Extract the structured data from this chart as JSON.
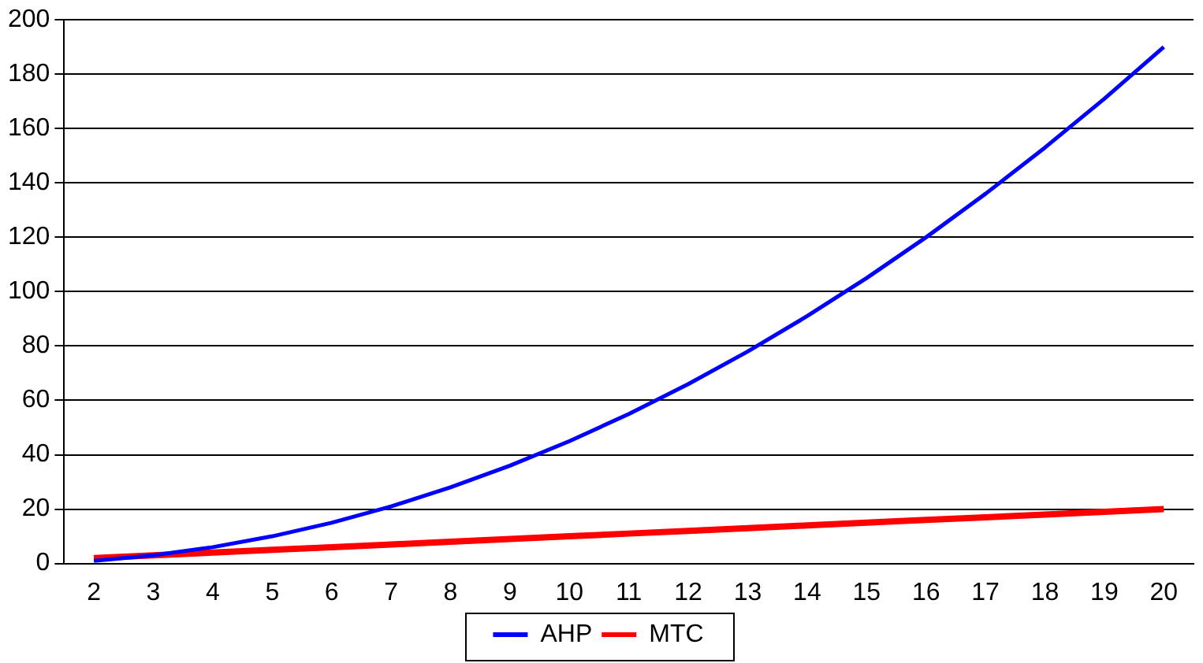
{
  "chart_data": {
    "type": "line",
    "categories": [
      "2",
      "3",
      "4",
      "5",
      "6",
      "7",
      "8",
      "9",
      "10",
      "11",
      "12",
      "13",
      "14",
      "15",
      "16",
      "17",
      "18",
      "19",
      "20"
    ],
    "series": [
      {
        "name": "AHP",
        "color": "#0000ff",
        "values": [
          1,
          3,
          6,
          10,
          15,
          21,
          28,
          36,
          45,
          55,
          66,
          78,
          91,
          105,
          120,
          136,
          153,
          171,
          190
        ]
      },
      {
        "name": "MTC",
        "color": "#ff0000",
        "values": [
          2,
          3,
          4,
          5,
          6,
          7,
          8,
          9,
          10,
          11,
          12,
          13,
          14,
          15,
          16,
          17,
          18,
          19,
          20
        ]
      }
    ],
    "ylim": [
      0,
      200
    ],
    "yticks": [
      0,
      20,
      40,
      60,
      80,
      100,
      120,
      140,
      160,
      180,
      200
    ],
    "grid": "y",
    "legend": "bottom",
    "marker": "none",
    "line_style": "solid"
  }
}
